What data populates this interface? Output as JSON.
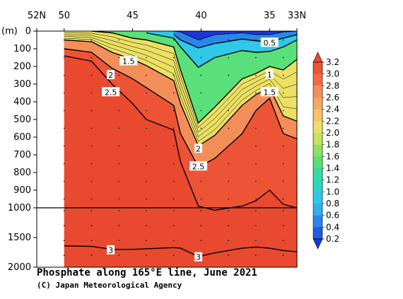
{
  "title": "Phosphate along 165°E line, June 2021",
  "credit": "(C) Japan Meteorological Agency",
  "chart_data": {
    "type": "heatmap",
    "title": "Phosphate along 165°E line, June 2021",
    "y_unit_label": "(m)",
    "x_axis": {
      "direction": "decreasing",
      "range": [
        52,
        33
      ],
      "ticks": [
        {
          "value": 52,
          "label": "52N"
        },
        {
          "value": 50,
          "label": "50"
        },
        {
          "value": 45,
          "label": "45"
        },
        {
          "value": 40,
          "label": "40"
        },
        {
          "value": 35,
          "label": "35"
        },
        {
          "value": 33,
          "label": "33N"
        }
      ]
    },
    "y_axis": {
      "direction": "depth, downward",
      "range": [
        0,
        2000
      ],
      "scale_break_depth": 1000,
      "ticks_upper": [
        0,
        100,
        200,
        300,
        400,
        500,
        600,
        700,
        800,
        900,
        1000
      ],
      "ticks_lower": [
        1500,
        2000
      ]
    },
    "colorbar": {
      "levels": [
        0.2,
        0.4,
        0.6,
        0.8,
        1.0,
        1.2,
        1.4,
        1.6,
        1.8,
        2.0,
        2.2,
        2.4,
        2.6,
        2.8,
        3.0,
        3.2
      ],
      "labels": [
        "0.2",
        "0.4",
        "0.6",
        "0.8",
        "1.0",
        "1.2",
        "1.4",
        "1.6",
        "1.8",
        "2.0",
        "2.2",
        "2.4",
        "2.6",
        "2.8",
        "3.0",
        "3.2"
      ],
      "colors": [
        "#1c37d6",
        "#1f5ae2",
        "#2a86ec",
        "#30aeef",
        "#2fc8e8",
        "#2bd6c6",
        "#35dca0",
        "#59e07a",
        "#8ee260",
        "#c2e55a",
        "#ece064",
        "#f6c466",
        "#f6a862",
        "#f48e58",
        "#f06c48",
        "#ec5435",
        "#e9492e"
      ]
    },
    "contour_labels": [
      {
        "value": "0.5",
        "lat": 35.0,
        "depth": 65
      },
      {
        "value": "1",
        "lat": 35.0,
        "depth": 245
      },
      {
        "value": "1.5",
        "lat": 45.3,
        "depth": 170
      },
      {
        "value": "1.5",
        "lat": 35.0,
        "depth": 345
      },
      {
        "value": "2",
        "lat": 46.6,
        "depth": 248
      },
      {
        "value": "2",
        "lat": 40.2,
        "depth": 665
      },
      {
        "value": "2.5",
        "lat": 46.6,
        "depth": 345
      },
      {
        "value": "2.5",
        "lat": 40.2,
        "depth": 765
      },
      {
        "value": "3",
        "lat": 46.6,
        "depth": 1712
      },
      {
        "value": "3",
        "lat": 40.2,
        "depth": 1830
      }
    ],
    "station_latitudes": [
      50,
      49,
      48,
      47,
      46,
      45,
      44,
      43,
      42,
      41,
      40,
      39,
      38,
      37,
      36,
      35,
      34,
      33
    ],
    "profiles": {
      "lat": [
        50,
        48,
        46.5,
        45,
        44,
        42,
        41.5,
        40.2,
        39,
        37,
        36,
        35,
        34,
        33
      ],
      "depth_of": {
        "0.2": [
          null,
          null,
          null,
          null,
          null,
          0,
          5,
          50,
          20,
          10,
          20,
          20,
          5,
          0
        ],
        "0.5": [
          null,
          null,
          null,
          null,
          null,
          20,
          50,
          95,
          70,
          45,
          55,
          60,
          40,
          20
        ],
        "1.0": [
          null,
          null,
          null,
          null,
          10,
          40,
          90,
          205,
          150,
          110,
          120,
          115,
          90,
          50
        ],
        "1.5": [
          null,
          0,
          10,
          40,
          50,
          90,
          220,
          520,
          430,
          270,
          240,
          200,
          220,
          160
        ],
        "2.0": [
          50,
          60,
          120,
          160,
          195,
          280,
          410,
          650,
          590,
          420,
          360,
          320,
          480,
          510
        ],
        "2.5": [
          100,
          120,
          210,
          270,
          320,
          420,
          580,
          770,
          720,
          580,
          450,
          380,
          580,
          610
        ],
        "3.0": [
          140,
          170,
          300,
          410,
          500,
          560,
          740,
          990,
          1040,
          990,
          960,
          900,
          980,
          1000
        ],
        "3.2": [
          null,
          null,
          null,
          null,
          null,
          null,
          null,
          null,
          null,
          null,
          null,
          null,
          null,
          null
        ]
      },
      "depth_of_3.0_deep": [
        1640,
        1650,
        1700,
        1700,
        1690,
        1670,
        1680,
        1820,
        1760,
        1680,
        1660,
        1680,
        1720,
        1740
      ]
    }
  }
}
